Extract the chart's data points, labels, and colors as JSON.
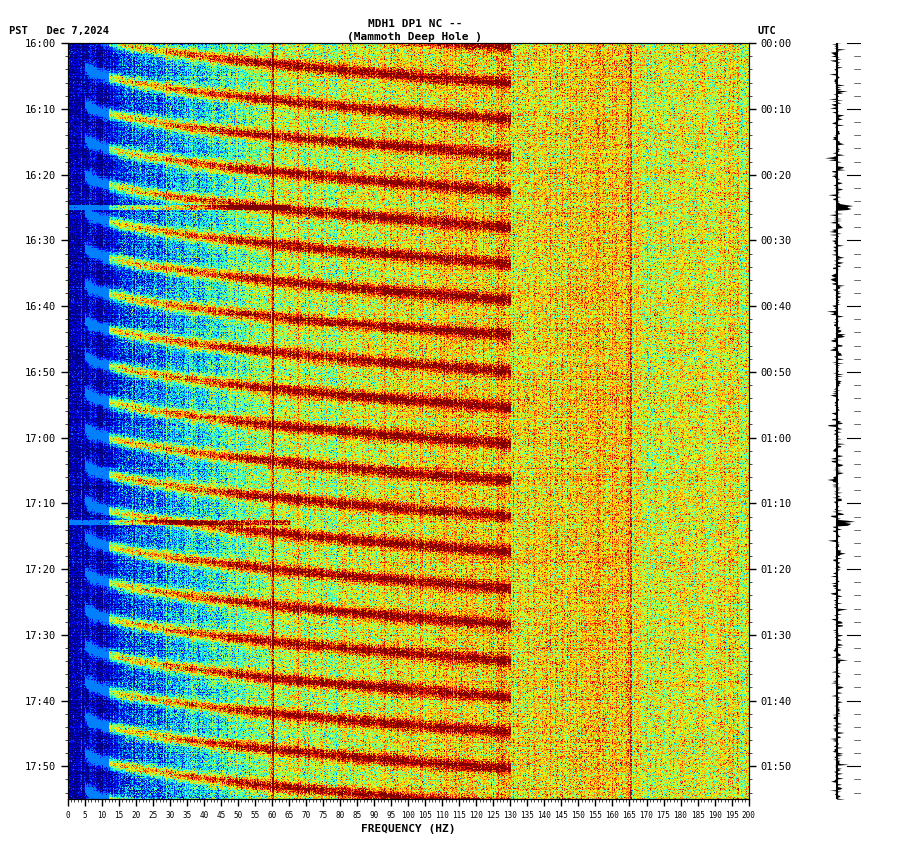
{
  "title_line1": "MDH1 DP1 NC --",
  "title_line2": "(Mammoth Deep Hole )",
  "label_left": "PST   Dec 7,2024",
  "label_right": "UTC",
  "ylabel_left_ticks": [
    "16:00",
    "16:10",
    "16:20",
    "16:30",
    "16:40",
    "16:50",
    "17:00",
    "17:10",
    "17:20",
    "17:30",
    "17:40",
    "17:50"
  ],
  "ylabel_right_ticks": [
    "00:00",
    "00:10",
    "00:20",
    "00:30",
    "00:40",
    "00:50",
    "01:00",
    "01:10",
    "01:20",
    "01:30",
    "01:40",
    "01:50"
  ],
  "xlabel": "FREQUENCY (HZ)",
  "freq_min": 0,
  "freq_max": 200,
  "n_time_bins": 760,
  "n_freq_bins": 800,
  "colormap": "jet",
  "bg_color": "#ffffff",
  "n_sweeps": 20,
  "sweep_period_minutes": 5.5
}
